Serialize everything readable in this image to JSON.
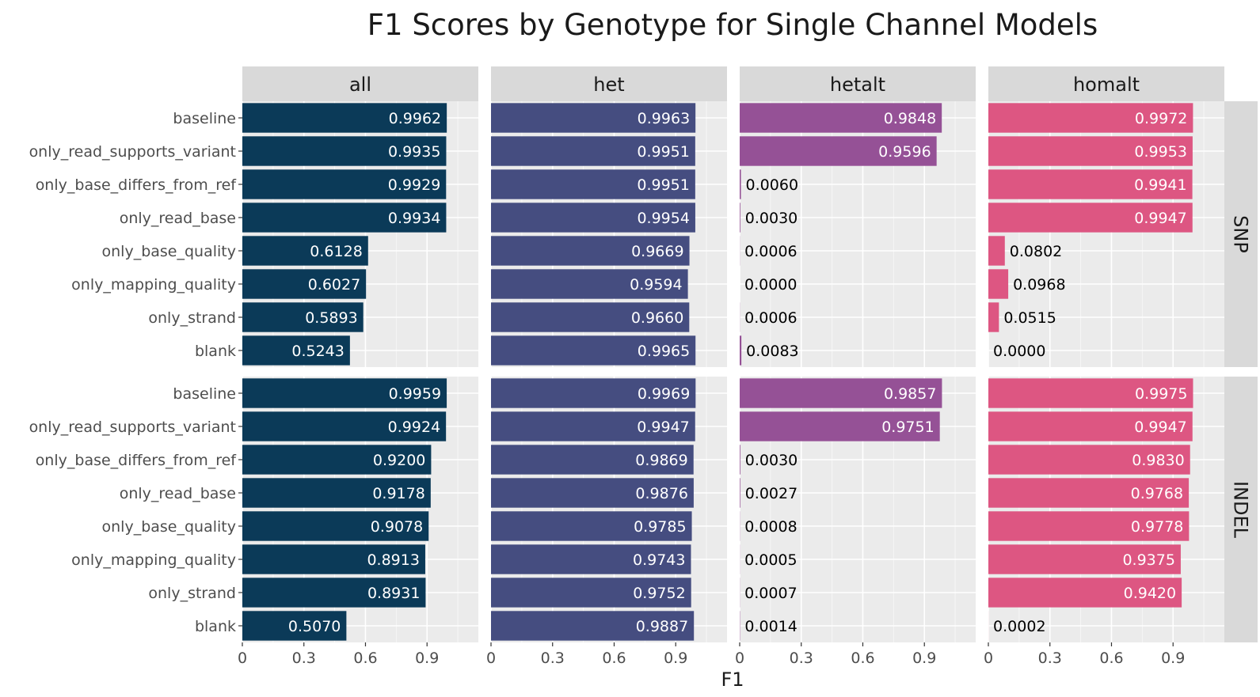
{
  "chart_data": {
    "type": "bar",
    "orientation": "horizontal",
    "title": "F1 Scores by Genotype for Single Channel Models",
    "xlabel": "F1",
    "ylabel": "",
    "xlim": [
      0,
      1.15
    ],
    "x_ticks": [
      "0",
      "0.3",
      "0.6",
      "0.9"
    ],
    "x_tick_values": [
      0,
      0.3,
      0.6,
      0.9
    ],
    "grid": true,
    "categories": [
      "baseline",
      "only_read_supports_variant",
      "only_base_differs_from_ref",
      "only_read_base",
      "only_base_quality",
      "only_mapping_quality",
      "only_strand",
      "blank"
    ],
    "column_facets": [
      "all",
      "het",
      "hetalt",
      "homalt"
    ],
    "row_facets": [
      "SNP",
      "INDEL"
    ],
    "colors": {
      "all": "#0b3a58",
      "het": "#454d80",
      "hetalt": "#955196",
      "homalt": "#dd5682",
      "panel_bg": "#ebebeb",
      "strip_bg": "#d9d9d9",
      "grid": "#ffffff"
    },
    "panels": [
      {
        "row": "SNP",
        "column": "all",
        "values": [
          0.9962,
          0.9935,
          0.9929,
          0.9934,
          0.6128,
          0.6027,
          0.5893,
          0.5243
        ],
        "labels": [
          "0.9962",
          "0.9935",
          "0.9929",
          "0.9934",
          "0.6128",
          "0.6027",
          "0.5893",
          "0.5243"
        ]
      },
      {
        "row": "SNP",
        "column": "het",
        "values": [
          0.9963,
          0.9951,
          0.9951,
          0.9954,
          0.9669,
          0.9594,
          0.966,
          0.9965
        ],
        "labels": [
          "0.9963",
          "0.9951",
          "0.9951",
          "0.9954",
          "0.9669",
          "0.9594",
          "0.9660",
          "0.9965"
        ]
      },
      {
        "row": "SNP",
        "column": "hetalt",
        "values": [
          0.9848,
          0.9596,
          0.006,
          0.003,
          0.0006,
          0.0,
          0.0006,
          0.0083
        ],
        "labels": [
          "0.9848",
          "0.9596",
          "0.0060",
          "0.0030",
          "0.0006",
          "0.0000",
          "0.0006",
          "0.0083"
        ]
      },
      {
        "row": "SNP",
        "column": "homalt",
        "values": [
          0.9972,
          0.9953,
          0.9941,
          0.9947,
          0.0802,
          0.0968,
          0.0515,
          0.0
        ],
        "labels": [
          "0.9972",
          "0.9953",
          "0.9941",
          "0.9947",
          "0.0802",
          "0.0968",
          "0.0515",
          "0.0000"
        ]
      },
      {
        "row": "INDEL",
        "column": "all",
        "values": [
          0.9959,
          0.9924,
          0.92,
          0.9178,
          0.9078,
          0.8913,
          0.8931,
          0.507
        ],
        "labels": [
          "0.9959",
          "0.9924",
          "0.9200",
          "0.9178",
          "0.9078",
          "0.8913",
          "0.8931",
          "0.5070"
        ]
      },
      {
        "row": "INDEL",
        "column": "het",
        "values": [
          0.9969,
          0.9947,
          0.9869,
          0.9876,
          0.9785,
          0.9743,
          0.9752,
          0.9887
        ],
        "labels": [
          "0.9969",
          "0.9947",
          "0.9869",
          "0.9876",
          "0.9785",
          "0.9743",
          "0.9752",
          "0.9887"
        ]
      },
      {
        "row": "INDEL",
        "column": "hetalt",
        "values": [
          0.9857,
          0.9751,
          0.003,
          0.0027,
          0.0008,
          0.0005,
          0.0007,
          0.0014
        ],
        "labels": [
          "0.9857",
          "0.9751",
          "0.0030",
          "0.0027",
          "0.0008",
          "0.0005",
          "0.0007",
          "0.0014"
        ]
      },
      {
        "row": "INDEL",
        "column": "homalt",
        "values": [
          0.9975,
          0.9947,
          0.983,
          0.9768,
          0.9778,
          0.9375,
          0.942,
          0.0002
        ],
        "labels": [
          "0.9975",
          "0.9947",
          "0.9830",
          "0.9768",
          "0.9778",
          "0.9375",
          "0.9420",
          "0.0002"
        ]
      }
    ]
  }
}
